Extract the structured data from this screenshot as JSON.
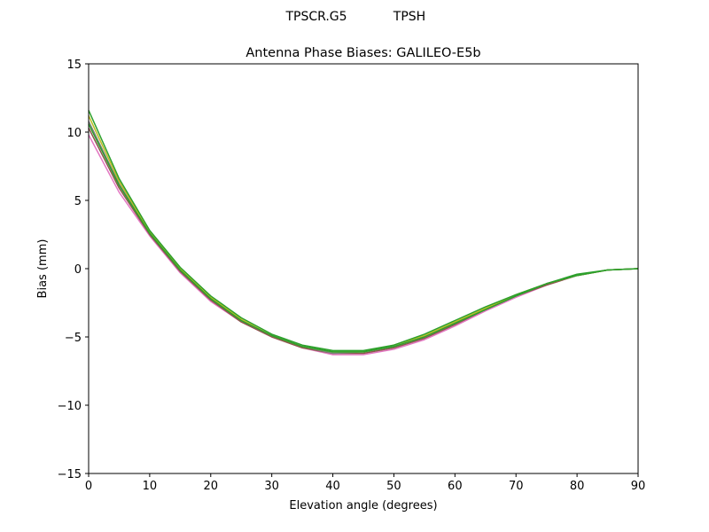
{
  "figure": {
    "suptitle_left": "TPSCR.G5",
    "suptitle_right": "TPSH"
  },
  "chart_data": {
    "type": "line",
    "title": "Antenna Phase Biases: GALILEO-E5b",
    "xlabel": "Elevation angle (degrees)",
    "ylabel": "Bias (mm)",
    "xlim": [
      0,
      90
    ],
    "ylim": [
      -15,
      15
    ],
    "xticks": [
      "0",
      "10",
      "20",
      "30",
      "40",
      "50",
      "60",
      "70",
      "80",
      "90"
    ],
    "yticks": [
      "15",
      "10",
      "5",
      "0",
      "−5",
      "−10",
      "−15"
    ],
    "grid": false,
    "legend": "none",
    "x": [
      0,
      5,
      10,
      15,
      20,
      25,
      30,
      35,
      40,
      45,
      50,
      55,
      60,
      65,
      70,
      75,
      80,
      85,
      90
    ],
    "series": [
      {
        "color": "#e377c2",
        "values": [
          9.8,
          5.6,
          2.4,
          -0.3,
          -2.4,
          -3.9,
          -5.0,
          -5.8,
          -6.3,
          -6.3,
          -5.9,
          -5.2,
          -4.2,
          -3.1,
          -2.1,
          -1.2,
          -0.5,
          -0.1,
          0.0
        ]
      },
      {
        "color": "#8c564b",
        "values": [
          10.3,
          5.9,
          2.5,
          -0.2,
          -2.3,
          -3.9,
          -5.0,
          -5.8,
          -6.2,
          -6.2,
          -5.8,
          -5.1,
          -4.1,
          -3.0,
          -2.0,
          -1.2,
          -0.5,
          -0.1,
          0.0
        ]
      },
      {
        "color": "#7f7f7f",
        "values": [
          10.8,
          6.2,
          2.6,
          -0.1,
          -2.2,
          -3.8,
          -4.9,
          -5.7,
          -6.2,
          -6.1,
          -5.7,
          -5.0,
          -4.0,
          -3.0,
          -2.0,
          -1.1,
          -0.5,
          -0.1,
          0.0
        ]
      },
      {
        "color": "#bcbd22",
        "values": [
          11.2,
          6.4,
          2.7,
          0.0,
          -2.1,
          -3.7,
          -4.9,
          -5.7,
          -6.1,
          -6.1,
          -5.6,
          -4.9,
          -3.9,
          -2.9,
          -1.9,
          -1.1,
          -0.5,
          -0.1,
          0.0
        ]
      },
      {
        "color": "#2ca02c",
        "values": [
          11.6,
          6.6,
          2.8,
          0.1,
          -2.0,
          -3.6,
          -4.8,
          -5.6,
          -6.0,
          -6.0,
          -5.6,
          -4.8,
          -3.8,
          -2.8,
          -1.9,
          -1.1,
          -0.4,
          -0.1,
          0.0
        ]
      },
      {
        "color": "#2ca02c",
        "values": [
          10.6,
          6.1,
          2.6,
          -0.1,
          -2.2,
          -3.8,
          -4.9,
          -5.7,
          -6.1,
          -6.1,
          -5.7,
          -5.0,
          -4.0,
          -3.0,
          -2.0,
          -1.1,
          -0.5,
          -0.1,
          0.0
        ]
      }
    ]
  }
}
